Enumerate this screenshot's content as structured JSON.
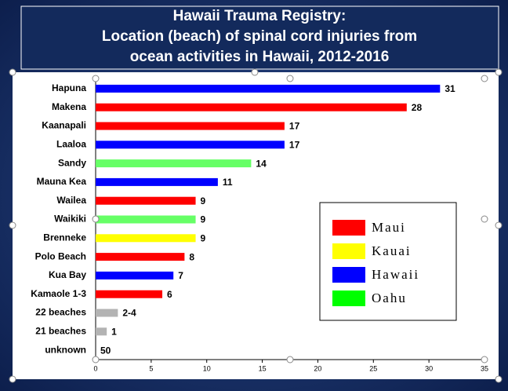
{
  "chart_data": {
    "type": "barh",
    "title": [
      "Hawaii Trauma Registry:",
      "Location (beach) of spinal cord injuries from",
      "ocean activities in Hawaii, 2012-2016"
    ],
    "categories": [
      "Hapuna",
      "Makena",
      "Kaanapali",
      "Laaloa",
      "Sandy",
      "Mauna Kea",
      "Wailea",
      "Waikiki",
      "Brenneke",
      "Polo Beach",
      "Kua Bay",
      "Kamaole 1-3",
      "22 beaches",
      "21 beaches",
      "unknown"
    ],
    "values": [
      31,
      28,
      17,
      17,
      14,
      11,
      9,
      9,
      9,
      8,
      7,
      6,
      2,
      1,
      null
    ],
    "value_labels": [
      "31",
      "28",
      "17",
      "17",
      "14",
      "11",
      "9",
      "9",
      "9",
      "8",
      "7",
      "6",
      "2-4",
      "1",
      "50"
    ],
    "colors": [
      "#0000ff",
      "#ff0000",
      "#ff0000",
      "#0000ff",
      "#66ff66",
      "#0000ff",
      "#ff0000",
      "#66ff66",
      "#ffff00",
      "#ff0000",
      "#0000ff",
      "#ff0000",
      "#b3b3b3",
      "#b3b3b3",
      "#b3b3b3"
    ],
    "xlim": [
      0,
      35
    ],
    "xticks": [
      0,
      5,
      10,
      15,
      20,
      25,
      30,
      35
    ],
    "legend": [
      {
        "name": "Maui",
        "color": "#ff0000"
      },
      {
        "name": "Kauai",
        "color": "#ffff00"
      },
      {
        "name": "Hawaii",
        "color": "#0000ff"
      },
      {
        "name": "Oahu",
        "color": "#00ff00"
      }
    ]
  }
}
